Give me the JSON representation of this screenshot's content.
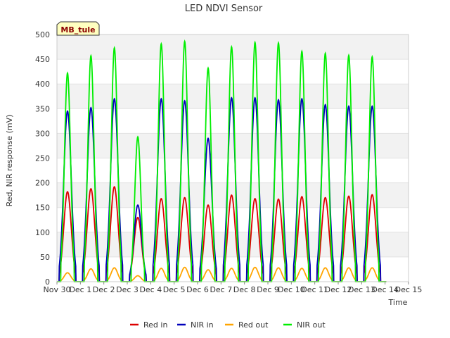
{
  "chart_data": {
    "type": "line",
    "title": "LED NDVI Sensor",
    "xlabel": "Time",
    "ylabel": "Red, NIR response (mV)",
    "ylim": [
      0,
      500
    ],
    "yticks": [
      0,
      50,
      100,
      150,
      200,
      250,
      300,
      350,
      400,
      450,
      500
    ],
    "xlim": [
      0,
      15
    ],
    "xtick_labels": [
      "Nov 30",
      "Dec 1",
      "Dec 2",
      "Dec 3",
      "Dec 4",
      "Dec 5",
      "Dec 6",
      "Dec 7",
      "Dec 8",
      "Dec 9",
      "Dec 10",
      "Dec 11",
      "Dec 12",
      "Dec 13",
      "Dec 14",
      "Dec 15"
    ],
    "station_label": "MB_tule",
    "legend_position": "bottom-center",
    "day_peak_centers": [
      0.45,
      1.45,
      2.45,
      3.45,
      4.45,
      5.45,
      6.45,
      7.45,
      8.45,
      9.45,
      10.45,
      11.45,
      12.45,
      13.45
    ],
    "series": [
      {
        "name": "Red in",
        "color": "#dd0000",
        "daily_peaks": [
          182,
          188,
          192,
          130,
          168,
          170,
          155,
          175,
          168,
          167,
          172,
          170,
          173,
          176
        ]
      },
      {
        "name": "NIR in",
        "color": "#0000bb",
        "daily_peaks": [
          345,
          352,
          370,
          155,
          370,
          366,
          290,
          372,
          372,
          368,
          370,
          358,
          355,
          355
        ]
      },
      {
        "name": "Red out",
        "color": "#ffa500",
        "daily_peaks": [
          18,
          26,
          28,
          12,
          27,
          29,
          24,
          27,
          29,
          28,
          27,
          28,
          28,
          28
        ]
      },
      {
        "name": "NIR out",
        "color": "#00ee00",
        "daily_peaks": [
          422,
          457,
          473,
          293,
          481,
          486,
          432,
          475,
          484,
          483,
          466,
          462,
          458,
          455
        ]
      }
    ]
  }
}
